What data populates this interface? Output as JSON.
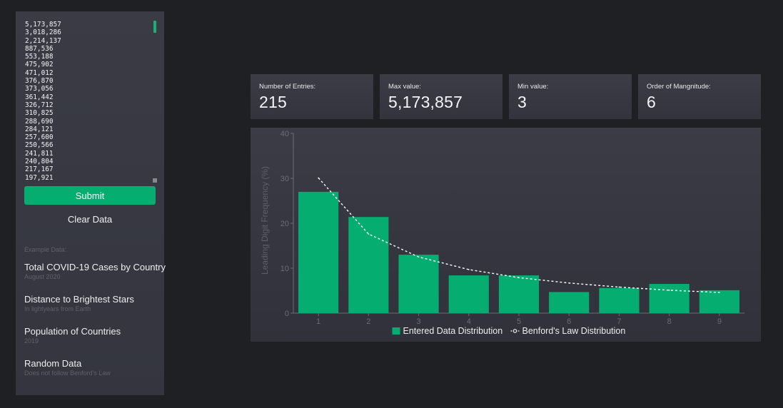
{
  "input": {
    "values": [
      "5,173,857",
      "3,018,286",
      "2,214,137",
      "887,536",
      "553,188",
      "475,902",
      "471,012",
      "376,870",
      "373,056",
      "361,442",
      "326,712",
      "310,825",
      "288,690",
      "284,121",
      "257,600",
      "250,566",
      "241,811",
      "240,804",
      "217,167",
      "197,921"
    ]
  },
  "buttons": {
    "submit_label": "Submit",
    "clear_label": "Clear Data"
  },
  "examples": {
    "heading": "Example Data:",
    "items": [
      {
        "title": "Total COVID-19 Cases by Country",
        "subtitle": "August 2020"
      },
      {
        "title": "Distance to Brightest Stars",
        "subtitle": "In lightyears from Earth"
      },
      {
        "title": "Population of Countries",
        "subtitle": "2019"
      },
      {
        "title": "Random Data",
        "subtitle": "Does not follow Benford's Law"
      }
    ]
  },
  "stats": [
    {
      "label": "Number of Entries:",
      "value": "215"
    },
    {
      "label": "Max value:",
      "value": "5,173,857"
    },
    {
      "label": "Min value:",
      "value": "3"
    },
    {
      "label": "Order of Mangnitude:",
      "value": "6"
    }
  ],
  "colors": {
    "accent": "#05ad71",
    "background": "#1f2023",
    "panel": "#3a3b45",
    "line": "#ffffff"
  },
  "chart_data": {
    "type": "bar",
    "categories": [
      "1",
      "2",
      "3",
      "4",
      "5",
      "6",
      "7",
      "8",
      "9"
    ],
    "ylabel": "Leading Digit Frequency (%)",
    "ylim": [
      0,
      40
    ],
    "yticks": [
      "0",
      "10",
      "20",
      "30",
      "40"
    ],
    "series": [
      {
        "name": "Entered Data Distribution",
        "type": "bar",
        "values": [
          27.0,
          21.4,
          13.0,
          8.4,
          8.4,
          4.7,
          5.6,
          6.5,
          5.1
        ]
      },
      {
        "name": "Benford's Law Distribution",
        "type": "line",
        "values": [
          30.1,
          17.6,
          12.5,
          9.7,
          7.9,
          6.7,
          5.8,
          5.1,
          4.6
        ]
      }
    ],
    "legend_position": "bottom-center",
    "grid": false
  }
}
